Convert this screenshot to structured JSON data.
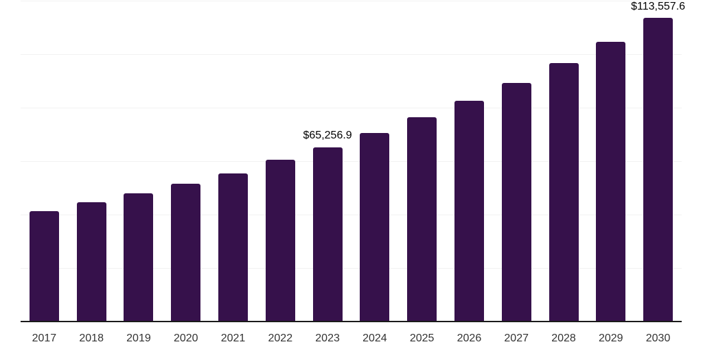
{
  "chart_data": {
    "type": "bar",
    "title": "",
    "xlabel": "",
    "ylabel": "",
    "categories": [
      "2017",
      "2018",
      "2019",
      "2020",
      "2021",
      "2022",
      "2023",
      "2024",
      "2025",
      "2026",
      "2027",
      "2028",
      "2029",
      "2030"
    ],
    "values": [
      41200,
      44700,
      47900,
      51500,
      55400,
      60400,
      65256.9,
      70500,
      76400,
      82500,
      89300,
      96700,
      104700,
      113557.6
    ],
    "annotations": [
      {
        "category": "2023",
        "text": "$65,256.9"
      },
      {
        "category": "2030",
        "text": "$113,557.6"
      }
    ],
    "ylim": [
      0,
      120000
    ],
    "grid_step": 20000,
    "grid": true,
    "legend": "none",
    "colors": {
      "bar": "#36114B",
      "gridline": "#f2f2f2",
      "axis": "#1a1a1a",
      "tick_text": "#333333",
      "label_text": "#000000",
      "background": "#ffffff"
    }
  }
}
